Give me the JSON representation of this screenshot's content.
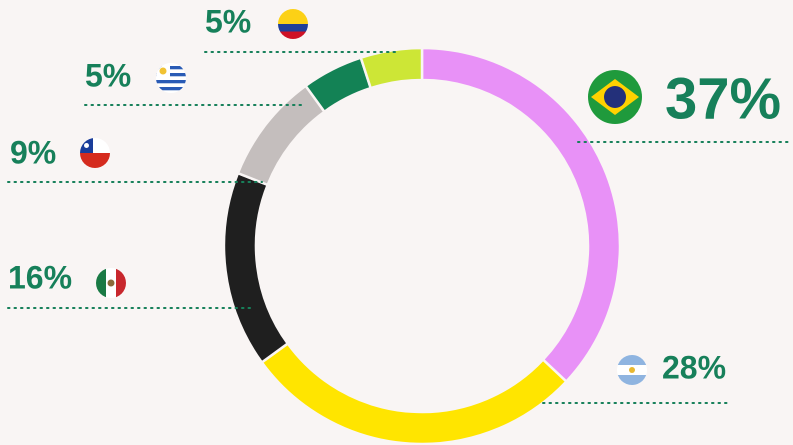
{
  "chart_data": {
    "type": "donut",
    "values": [
      37,
      28,
      16,
      9,
      5,
      5
    ],
    "value_labels": [
      "37%",
      "28%",
      "16%",
      "9%",
      "5%",
      "5%"
    ],
    "colors": [
      "#e891f7",
      "#ffe500",
      "#1f1f1f",
      "#c4bebd",
      "#138255",
      "#cde636"
    ]
  }
}
